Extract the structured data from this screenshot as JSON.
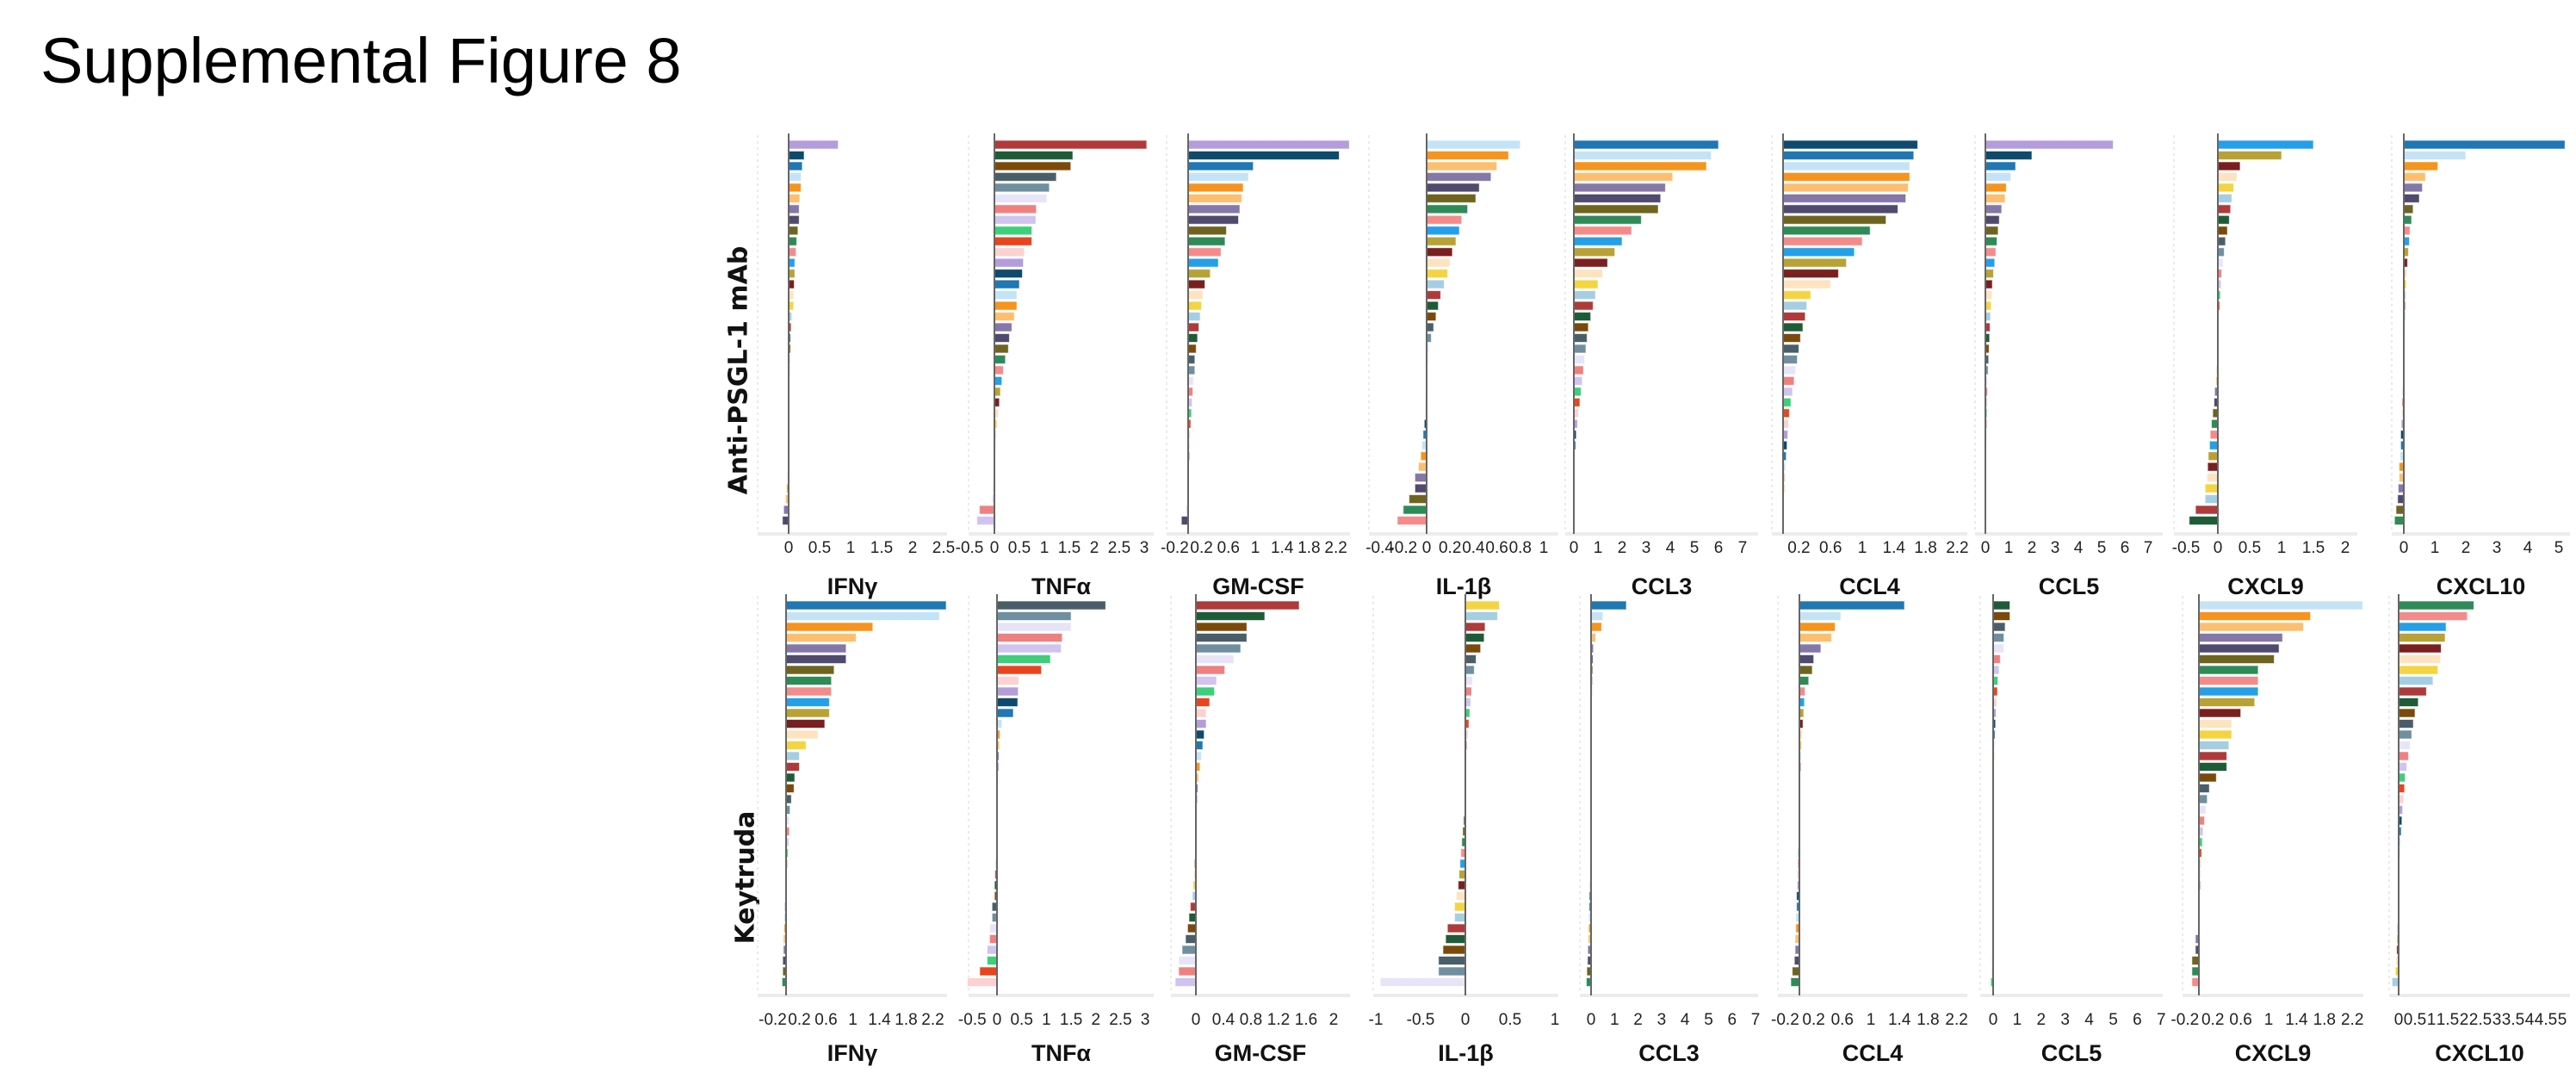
{
  "title": "Supplemental Figure 8",
  "row_labels": [
    "Anti-PSGL-1 mAb",
    "Keytruda"
  ],
  "palette": [
    "#b39ddb",
    "#0d4a6e",
    "#1f77b4",
    "#c5e3f7",
    "#f7941d",
    "#fdbf6f",
    "#8577a8",
    "#4f4a6e",
    "#6e6420",
    "#2e8b57",
    "#f48b8b",
    "#23a0e8",
    "#b8a235",
    "#7a1f1f",
    "#fde3bf",
    "#f5d442",
    "#a6cee3",
    "#b03a3a",
    "#1e5c38",
    "#7b4a0a",
    "#4a5e6a",
    "#6f8fa0",
    "#e8e4f8",
    "#f08080",
    "#d0c4ee",
    "#3ecf7a",
    "#e8451f",
    "#fcd1d1"
  ],
  "chart_data": [
    {
      "type": "bar",
      "orientation": "horizontal",
      "row": "Anti-PSGL-1 mAb",
      "title": "IFNγ",
      "ticks": [
        "0",
        "0.5",
        "1",
        "1.5",
        "2",
        "2.5"
      ],
      "xlim": [
        -0.2,
        2.5
      ],
      "color_offset": 0,
      "values": [
        0.8,
        0.25,
        0.22,
        0.2,
        0.2,
        0.18,
        0.17,
        0.17,
        0.15,
        0.13,
        0.12,
        0.1,
        0.1,
        0.09,
        0.08,
        0.08,
        0.05,
        0.04,
        0.03,
        0.03,
        0.02,
        0.02,
        0.01,
        0.01,
        0.01,
        0,
        0,
        0,
        0,
        -0.01,
        -0.01,
        -0.02,
        -0.03,
        -0.05,
        -0.08,
        -0.1
      ]
    },
    {
      "type": "bar",
      "orientation": "horizontal",
      "row": "Anti-PSGL-1 mAb",
      "title": "TNFα",
      "ticks": [
        "-0.5",
        "0",
        "0.5",
        "1",
        "1.5",
        "2",
        "2.5",
        "3"
      ],
      "xlim": [
        -0.5,
        3
      ],
      "color_offset": 17,
      "values": [
        3.05,
        1.57,
        1.53,
        1.24,
        1.1,
        1.05,
        0.84,
        0.83,
        0.75,
        0.75,
        0.6,
        0.58,
        0.56,
        0.5,
        0.45,
        0.45,
        0.4,
        0.35,
        0.3,
        0.28,
        0.22,
        0.18,
        0.15,
        0.12,
        0.1,
        0.08,
        0.05,
        0.03,
        0.02,
        0.01,
        0,
        0,
        -0.02,
        -0.05,
        -0.3,
        -0.35
      ]
    },
    {
      "type": "bar",
      "orientation": "horizontal",
      "row": "Anti-PSGL-1 mAb",
      "title": "GM-CSF",
      "ticks": [
        "-0.2",
        "0.2",
        "0.6",
        "1",
        "1.4",
        "1.8",
        "2.2"
      ],
      "xlim": [
        -0.2,
        2.4
      ],
      "color_offset": 0,
      "values": [
        2.4,
        2.25,
        0.97,
        0.9,
        0.82,
        0.8,
        0.77,
        0.75,
        0.57,
        0.55,
        0.49,
        0.45,
        0.33,
        0.25,
        0.22,
        0.2,
        0.18,
        0.16,
        0.14,
        0.12,
        0.1,
        0.1,
        0.08,
        0.07,
        0.06,
        0.05,
        0.04,
        0.03,
        0.02,
        0.02,
        0.01,
        0.01,
        0,
        0,
        -0.02,
        -0.1
      ]
    },
    {
      "type": "bar",
      "orientation": "horizontal",
      "row": "Anti-PSGL-1 mAb",
      "title": "IL-1β",
      "ticks": [
        "-0.4",
        "-0.2",
        "0",
        "0.2",
        "0.4",
        "0.6",
        "0.8",
        "1"
      ],
      "xlim": [
        -0.4,
        1
      ],
      "color_offset": 3,
      "values": [
        0.8,
        0.7,
        0.6,
        0.55,
        0.45,
        0.42,
        0.35,
        0.3,
        0.28,
        0.25,
        0.22,
        0.2,
        0.18,
        0.15,
        0.12,
        0.1,
        0.08,
        0.06,
        0.04,
        0.02,
        0.01,
        0,
        0,
        0,
        -0.01,
        -0.01,
        -0.02,
        -0.03,
        -0.04,
        -0.05,
        -0.07,
        -0.1,
        -0.1,
        -0.15,
        -0.2,
        -0.25
      ]
    },
    {
      "type": "bar",
      "orientation": "horizontal",
      "row": "Anti-PSGL-1 mAb",
      "title": "CCL3",
      "ticks": [
        "0",
        "1",
        "2",
        "3",
        "4",
        "5",
        "6",
        "7"
      ],
      "xlim": [
        0,
        7
      ],
      "color_offset": 2,
      "values": [
        6.0,
        5.7,
        5.5,
        4.1,
        3.8,
        3.6,
        3.5,
        2.8,
        2.4,
        2.0,
        1.7,
        1.4,
        1.2,
        1.0,
        0.9,
        0.8,
        0.7,
        0.6,
        0.55,
        0.5,
        0.45,
        0.4,
        0.35,
        0.3,
        0.25,
        0.2,
        0.15,
        0.1,
        0.08,
        0.05,
        0.03,
        0.02,
        0.01,
        0,
        0,
        0
      ]
    },
    {
      "type": "bar",
      "orientation": "horizontal",
      "row": "Anti-PSGL-1 mAb",
      "title": "CCL4",
      "ticks": [
        "0.2",
        "0.6",
        "1",
        "1.4",
        "1.8",
        "2.2"
      ],
      "xlim": [
        0,
        2.2
      ],
      "color_offset": 1,
      "values": [
        1.7,
        1.65,
        1.6,
        1.6,
        1.58,
        1.55,
        1.45,
        1.3,
        1.1,
        1.0,
        0.9,
        0.8,
        0.7,
        0.6,
        0.35,
        0.3,
        0.28,
        0.25,
        0.22,
        0.2,
        0.18,
        0.16,
        0.14,
        0.12,
        0.1,
        0.08,
        0.07,
        0.06,
        0.05,
        0.04,
        0.03,
        0.02,
        0.02,
        0.01,
        0.01,
        0
      ]
    },
    {
      "type": "bar",
      "orientation": "horizontal",
      "row": "Anti-PSGL-1 mAb",
      "title": "CCL5",
      "ticks": [
        "0",
        "1",
        "2",
        "3",
        "4",
        "5",
        "6",
        "7"
      ],
      "xlim": [
        0,
        7
      ],
      "color_offset": 0,
      "values": [
        5.5,
        2.0,
        1.3,
        1.1,
        0.9,
        0.85,
        0.7,
        0.6,
        0.55,
        0.5,
        0.45,
        0.4,
        0.35,
        0.3,
        0.28,
        0.25,
        0.22,
        0.2,
        0.18,
        0.16,
        0.14,
        0.12,
        0.1,
        0.09,
        0.08,
        0.07,
        0.06,
        0.05,
        0.04,
        0.03,
        0.02,
        0.02,
        0.01,
        0.01,
        0,
        0
      ]
    },
    {
      "type": "bar",
      "orientation": "horizontal",
      "row": "Anti-PSGL-1 mAb",
      "title": "CXCL9",
      "ticks": [
        "-0.5",
        "0",
        "0.5",
        "1",
        "1.5",
        "2"
      ],
      "xlim": [
        -0.5,
        2.2
      ],
      "color_offset": 11,
      "values": [
        1.5,
        1.0,
        0.35,
        0.3,
        0.25,
        0.22,
        0.2,
        0.18,
        0.15,
        0.12,
        0.1,
        0.08,
        0.06,
        0.05,
        0.04,
        0.03,
        0.02,
        0.01,
        0,
        0,
        -0.01,
        -0.02,
        -0.03,
        -0.05,
        -0.06,
        -0.08,
        -0.1,
        -0.12,
        -0.13,
        -0.15,
        -0.16,
        -0.17,
        -0.2,
        -0.2,
        -0.35,
        -0.45
      ]
    },
    {
      "type": "bar",
      "orientation": "horizontal",
      "row": "Anti-PSGL-1 mAb",
      "title": "CXCL10",
      "ticks": [
        "0",
        "1",
        "2",
        "3",
        "4",
        "5"
      ],
      "xlim": [
        -0.3,
        5.2
      ],
      "color_offset": 2,
      "values": [
        5.2,
        2.0,
        1.1,
        0.7,
        0.6,
        0.5,
        0.3,
        0.25,
        0.2,
        0.18,
        0.15,
        0.12,
        0.1,
        0.08,
        0.06,
        0.05,
        0.04,
        0.03,
        0.02,
        0.01,
        0,
        0,
        -0.02,
        -0.04,
        -0.05,
        -0.06,
        -0.08,
        -0.1,
        -0.1,
        -0.12,
        -0.15,
        -0.15,
        -0.18,
        -0.2,
        -0.25,
        -0.3
      ]
    },
    {
      "type": "bar",
      "orientation": "horizontal",
      "row": "Keytruda",
      "title": "IFNγ",
      "ticks": [
        "-0.2",
        "0.2",
        "0.6",
        "1",
        "1.4",
        "1.8",
        "2.2"
      ],
      "xlim": [
        -0.2,
        2.4
      ],
      "color_offset": 2,
      "values": [
        2.4,
        2.3,
        1.3,
        1.05,
        0.9,
        0.9,
        0.72,
        0.68,
        0.68,
        0.65,
        0.65,
        0.58,
        0.48,
        0.3,
        0.2,
        0.2,
        0.13,
        0.12,
        0.08,
        0.06,
        0.05,
        0.05,
        0.04,
        0.03,
        0.02,
        0.02,
        0.01,
        0,
        -0.02,
        -0.03,
        -0.03,
        -0.04,
        -0.04,
        -0.05,
        -0.05,
        -0.06
      ]
    },
    {
      "type": "bar",
      "orientation": "horizontal",
      "row": "Keytruda",
      "title": "TNFα",
      "ticks": [
        "-0.5",
        "0",
        "0.5",
        "1",
        "1.5",
        "2",
        "2.5",
        "3"
      ],
      "xlim": [
        -0.5,
        3
      ],
      "color_offset": 20,
      "values": [
        2.2,
        1.5,
        1.5,
        1.32,
        1.3,
        1.08,
        0.9,
        0.44,
        0.43,
        0.42,
        0.33,
        0.1,
        0.06,
        0.05,
        0.04,
        0.03,
        0.02,
        0.01,
        0.01,
        0,
        0,
        0,
        -0.01,
        -0.02,
        -0.03,
        -0.04,
        -0.05,
        -0.05,
        -0.1,
        -0.1,
        -0.15,
        -0.15,
        -0.2,
        -0.2,
        -0.35,
        -0.6
      ]
    },
    {
      "type": "bar",
      "orientation": "horizontal",
      "row": "Keytruda",
      "title": "GM-CSF",
      "ticks": [
        "0",
        "0.4",
        "0.8",
        "1.2",
        "1.6",
        "2"
      ],
      "xlim": [
        -0.3,
        2
      ],
      "color_offset": 17,
      "values": [
        1.5,
        1.0,
        0.74,
        0.74,
        0.65,
        0.55,
        0.42,
        0.3,
        0.27,
        0.2,
        0.15,
        0.15,
        0.12,
        0.1,
        0.08,
        0.06,
        0.04,
        0.03,
        0.02,
        0.01,
        0,
        0,
        0,
        -0.01,
        -0.02,
        -0.03,
        -0.04,
        -0.05,
        -0.08,
        -0.1,
        -0.12,
        -0.15,
        -0.2,
        -0.25,
        -0.25,
        -0.3
      ]
    },
    {
      "type": "bar",
      "orientation": "horizontal",
      "row": "Keytruda",
      "title": "IL-1β",
      "ticks": [
        "-1",
        "-0.5",
        "0",
        "0.5",
        "1"
      ],
      "xlim": [
        -1,
        1
      ],
      "color_offset": 15,
      "values": [
        0.38,
        0.36,
        0.22,
        0.21,
        0.17,
        0.12,
        0.1,
        0.08,
        0.07,
        0.06,
        0.05,
        0.04,
        0.03,
        0.02,
        0.01,
        0.01,
        0,
        0,
        0,
        -0.01,
        -0.02,
        -0.03,
        -0.04,
        -0.05,
        -0.06,
        -0.07,
        -0.08,
        -0.1,
        -0.12,
        -0.12,
        -0.2,
        -0.22,
        -0.25,
        -0.3,
        -0.3,
        -0.95
      ]
    },
    {
      "type": "bar",
      "orientation": "horizontal",
      "row": "Keytruda",
      "title": "CCL3",
      "ticks": [
        "0",
        "1",
        "2",
        "3",
        "4",
        "5",
        "6",
        "7"
      ],
      "xlim": [
        -0.3,
        7
      ],
      "color_offset": 2,
      "values": [
        1.5,
        0.5,
        0.45,
        0.2,
        0.1,
        0.08,
        0.07,
        0.06,
        0.05,
        0.04,
        0.04,
        0.03,
        0.03,
        0.02,
        0.02,
        0.01,
        0.01,
        0.01,
        0,
        0,
        0,
        0,
        -0.02,
        -0.03,
        -0.04,
        -0.05,
        -0.06,
        -0.07,
        -0.08,
        -0.1,
        -0.1,
        -0.12,
        -0.14,
        -0.15,
        -0.18,
        -0.2
      ]
    },
    {
      "type": "bar",
      "orientation": "horizontal",
      "row": "Keytruda",
      "title": "CCL4",
      "ticks": [
        "-0.2",
        "0.2",
        "0.6",
        "1",
        "1.4",
        "1.8",
        "2.2"
      ],
      "xlim": [
        -0.2,
        2.2
      ],
      "color_offset": 2,
      "values": [
        1.47,
        0.58,
        0.5,
        0.45,
        0.3,
        0.2,
        0.18,
        0.13,
        0.08,
        0.07,
        0.06,
        0.05,
        0.04,
        0.03,
        0.02,
        0.02,
        0.01,
        0.01,
        0,
        0,
        0,
        -0.01,
        -0.01,
        -0.02,
        -0.02,
        -0.03,
        -0.03,
        -0.04,
        -0.04,
        -0.05,
        -0.05,
        -0.06,
        -0.06,
        -0.07,
        -0.1,
        -0.12
      ]
    },
    {
      "type": "bar",
      "orientation": "horizontal",
      "row": "Keytruda",
      "title": "CCL5",
      "ticks": [
        "0",
        "1",
        "2",
        "3",
        "4",
        "5",
        "6",
        "7"
      ],
      "xlim": [
        -0.2,
        7
      ],
      "color_offset": 18,
      "values": [
        0.7,
        0.7,
        0.5,
        0.45,
        0.45,
        0.3,
        0.25,
        0.2,
        0.18,
        0.15,
        0.12,
        0.1,
        0.08,
        0.06,
        0.05,
        0.04,
        0.03,
        0.02,
        0.02,
        0.01,
        0.01,
        0,
        0,
        0,
        0,
        -0.01,
        -0.01,
        -0.02,
        -0.02,
        -0.03,
        -0.03,
        -0.04,
        -0.05,
        -0.05,
        -0.06,
        -0.1
      ]
    },
    {
      "type": "bar",
      "orientation": "horizontal",
      "row": "Keytruda",
      "title": "CXCL9",
      "ticks": [
        "-0.2",
        "0.2",
        "0.6",
        "1",
        "1.4",
        "1.8",
        "2.2"
      ],
      "xlim": [
        -0.2,
        2.4
      ],
      "color_offset": 3,
      "values": [
        2.35,
        1.6,
        1.5,
        1.2,
        1.15,
        1.08,
        0.85,
        0.85,
        0.85,
        0.8,
        0.6,
        0.47,
        0.47,
        0.43,
        0.4,
        0.4,
        0.25,
        0.15,
        0.12,
        0.1,
        0.08,
        0.06,
        0.05,
        0.04,
        0.03,
        0.02,
        0.02,
        0.01,
        0.01,
        0,
        0,
        -0.05,
        -0.05,
        -0.1,
        -0.1,
        -0.1
      ]
    },
    {
      "type": "bar",
      "orientation": "horizontal",
      "row": "Keytruda",
      "title": "CXCL10",
      "ticks": [
        "0",
        "0.5",
        "1",
        "1.5",
        "2",
        "2.5",
        "3",
        "3.5",
        "4",
        "4.5",
        "5"
      ],
      "xlim": [
        -0.3,
        5
      ],
      "color_offset": 9,
      "values": [
        2.3,
        2.1,
        1.45,
        1.42,
        1.3,
        1.28,
        1.2,
        1.05,
        0.85,
        0.6,
        0.5,
        0.45,
        0.4,
        0.35,
        0.3,
        0.25,
        0.2,
        0.18,
        0.15,
        0.12,
        0.1,
        0.08,
        0.06,
        0.04,
        0.02,
        0.01,
        0,
        0,
        0,
        -0.02,
        -0.04,
        -0.05,
        -0.06,
        -0.08,
        -0.1,
        -0.2
      ]
    }
  ]
}
